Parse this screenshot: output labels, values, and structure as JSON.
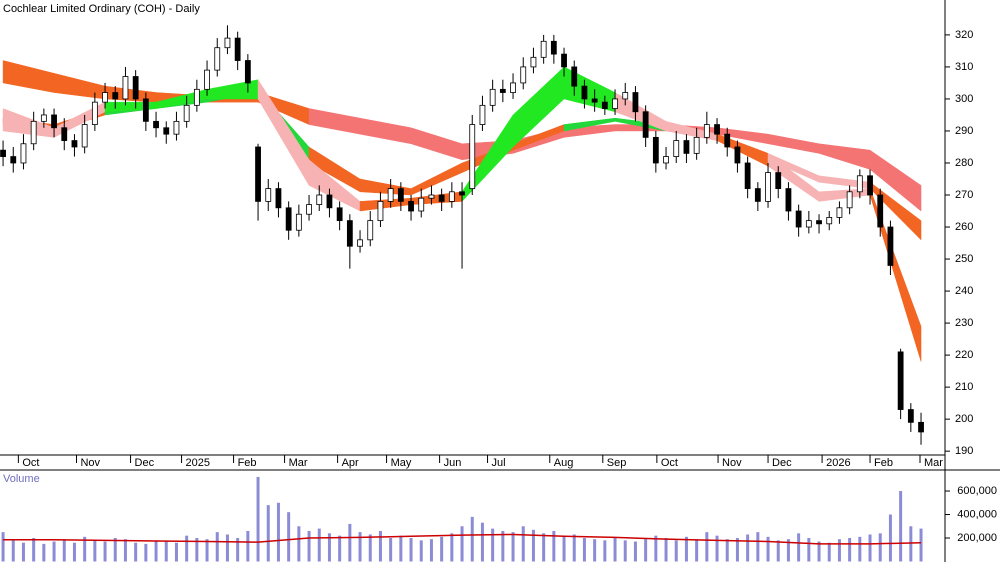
{
  "chart_data": [
    {
      "type": "candlestick",
      "title": "Cochlear Limited Ordinary (COH) - Daily",
      "open": [
        284,
        282,
        280,
        286,
        293,
        295,
        291,
        287,
        285,
        292,
        299,
        302,
        300,
        307,
        300,
        293,
        291,
        289,
        293,
        298,
        303,
        309,
        316,
        319,
        312,
        285,
        268,
        272,
        266,
        259,
        264,
        267,
        270,
        266,
        262,
        254,
        256,
        262,
        268,
        272,
        268,
        265,
        269,
        270,
        268,
        271,
        272,
        292,
        298,
        303,
        302,
        305,
        310,
        313,
        318,
        314,
        310,
        304,
        300,
        299,
        297,
        300,
        302,
        296,
        288,
        280,
        282,
        287,
        283,
        288,
        292,
        289,
        285,
        280,
        272,
        268,
        277,
        272,
        265,
        260,
        262,
        261,
        263,
        266,
        271,
        276,
        270,
        260,
        221,
        203,
        199
      ],
      "high": [
        287,
        285,
        289,
        296,
        297,
        297,
        294,
        289,
        295,
        302,
        305,
        304,
        310,
        309,
        302,
        296,
        293,
        296,
        301,
        306,
        312,
        319,
        323,
        321,
        314,
        286,
        275,
        274,
        268,
        267,
        270,
        273,
        272,
        268,
        264,
        259,
        265,
        271,
        275,
        274,
        270,
        272,
        273,
        272,
        274,
        274,
        295,
        301,
        306,
        306,
        308,
        313,
        316,
        320,
        320,
        316,
        312,
        306,
        303,
        301,
        303,
        305,
        304,
        298,
        290,
        285,
        290,
        289,
        291,
        296,
        294,
        291,
        287,
        282,
        274,
        280,
        279,
        274,
        267,
        265,
        264,
        265,
        268,
        273,
        278,
        278,
        272,
        262,
        222,
        205,
        202
      ],
      "low": [
        279,
        277,
        278,
        284,
        291,
        288,
        284,
        282,
        283,
        290,
        297,
        297,
        298,
        297,
        290,
        288,
        286,
        287,
        291,
        296,
        301,
        307,
        314,
        309,
        302,
        262,
        265,
        263,
        256,
        257,
        262,
        265,
        263,
        259,
        247,
        252,
        254,
        260,
        266,
        265,
        262,
        263,
        267,
        265,
        266,
        247,
        270,
        290,
        296,
        299,
        300,
        303,
        308,
        311,
        311,
        307,
        301,
        297,
        296,
        295,
        295,
        298,
        293,
        285,
        277,
        278,
        280,
        280,
        281,
        286,
        286,
        282,
        277,
        269,
        265,
        266,
        269,
        262,
        257,
        258,
        258,
        259,
        261,
        264,
        269,
        267,
        257,
        245,
        200,
        196,
        192
      ],
      "close": [
        282,
        280,
        286,
        293,
        295,
        291,
        287,
        285,
        292,
        299,
        302,
        300,
        307,
        300,
        293,
        291,
        289,
        293,
        298,
        303,
        309,
        316,
        319,
        312,
        305,
        268,
        272,
        266,
        259,
        264,
        267,
        270,
        266,
        262,
        254,
        256,
        262,
        268,
        272,
        268,
        265,
        269,
        270,
        268,
        271,
        270,
        292,
        298,
        303,
        302,
        305,
        310,
        313,
        318,
        314,
        310,
        304,
        300,
        299,
        297,
        300,
        302,
        296,
        288,
        280,
        282,
        287,
        283,
        288,
        292,
        289,
        285,
        280,
        272,
        268,
        277,
        272,
        265,
        260,
        262,
        261,
        263,
        266,
        271,
        276,
        270,
        260,
        248,
        203,
        199,
        196
      ],
      "up_color": "#ffffff",
      "down_color": "#000000",
      "ribbons": [
        {
          "x": [
            0,
            5,
            10,
            15,
            20,
            25,
            30,
            35,
            40,
            45,
            50,
            55,
            60,
            65,
            70,
            75,
            80,
            85,
            90
          ],
          "upper": [
            312,
            308,
            304,
            302,
            301,
            302,
            297,
            294,
            291,
            286,
            287,
            291,
            292,
            292,
            291,
            289,
            286,
            284,
            273
          ],
          "lower": [
            305,
            302,
            300,
            299,
            299,
            299,
            292,
            289,
            286,
            281,
            283,
            288,
            290,
            290,
            289,
            286,
            283,
            278,
            265
          ],
          "colors": [
            "#f26522",
            "#f26522",
            "#f26522",
            "#f26522",
            "#f26522",
            "#f26522",
            "#f47474",
            "#f47474",
            "#f47474",
            "#f47474",
            "#f47474",
            "#f47474",
            "#f47474",
            "#f47474",
            "#f47474",
            "#f47474",
            "#f47474",
            "#f47474",
            "#f47474"
          ]
        },
        {
          "x": [
            0,
            5,
            10,
            15,
            20,
            25,
            30,
            35,
            40,
            45,
            50,
            55,
            60,
            65,
            70,
            75,
            80,
            85,
            90
          ],
          "upper": [
            294,
            292,
            297,
            299,
            301,
            303,
            285,
            275,
            272,
            280,
            286,
            292,
            294,
            292,
            289,
            283,
            276,
            274,
            262
          ],
          "lower": [
            292,
            290,
            295,
            297,
            299,
            302,
            280,
            271,
            270,
            277,
            284,
            290,
            293,
            290,
            288,
            281,
            274,
            272,
            256
          ],
          "colors": [
            "#f26522",
            "#f26522",
            "#22d83a",
            "#22d83a",
            "#22d83a",
            "#22d83a",
            "#f26522",
            "#f26522",
            "#f26522",
            "#f26522",
            "#f26522",
            "#22d83a",
            "#22d83a",
            "#f26522",
            "#f26522",
            "#f7b3b3",
            "#f7b3b3",
            "#f26522",
            "#f7b3b3"
          ]
        },
        {
          "x": [
            0,
            5,
            10,
            15,
            20,
            25,
            30,
            35,
            40,
            45,
            50,
            55,
            60,
            65,
            70,
            75,
            80,
            85,
            90
          ],
          "upper": [
            297,
            291,
            299,
            299,
            303,
            306,
            281,
            268,
            269,
            271,
            295,
            310,
            302,
            293,
            289,
            283,
            271,
            272,
            229
          ],
          "lower": [
            290,
            288,
            296,
            297,
            300,
            300,
            273,
            265,
            267,
            268,
            285,
            300,
            296,
            290,
            287,
            279,
            268,
            270,
            218
          ],
          "colors": [
            "#f7b3b3",
            "#f7b3b3",
            "#22e822",
            "#22e822",
            "#22e822",
            "#f7b3b3",
            "#f7b3b3",
            "#f26522",
            "#f26522",
            "#22e822",
            "#22e822",
            "#22e822",
            "#f7b3b3",
            "#f7b3b3",
            "#f26522",
            "#f7b3b3",
            "#f7b3b3",
            "#f26522",
            "#f7b3b3"
          ]
        }
      ],
      "xlim": [
        -0.3,
        92.35
      ],
      "ylim": [
        188.8,
        330.9
      ],
      "yticks": [
        190,
        200,
        210,
        220,
        230,
        240,
        250,
        260,
        270,
        280,
        290,
        300,
        310,
        320
      ],
      "xticks": [
        {
          "value": 1.5,
          "label": "Oct"
        },
        {
          "value": 7.2,
          "label": "Nov"
        },
        {
          "value": 12.5,
          "label": "Dec"
        },
        {
          "value": 17.5,
          "label": "2025"
        },
        {
          "value": 22.6,
          "label": "Feb"
        },
        {
          "value": 27.6,
          "label": "Mar"
        },
        {
          "value": 32.8,
          "label": "Apr"
        },
        {
          "value": 37.6,
          "label": "May"
        },
        {
          "value": 42.8,
          "label": "Jun"
        },
        {
          "value": 47.5,
          "label": "Jul"
        },
        {
          "value": 53.6,
          "label": "Aug"
        },
        {
          "value": 58.8,
          "label": "Sep"
        },
        {
          "value": 64.1,
          "label": "Oct"
        },
        {
          "value": 70.1,
          "label": "Nov"
        },
        {
          "value": 75.0,
          "label": "Dec"
        },
        {
          "value": 80.3,
          "label": "2026"
        },
        {
          "value": 85.0,
          "label": "Feb"
        },
        {
          "value": 89.9,
          "label": "Mar"
        }
      ],
      "grid": false
    },
    {
      "type": "bar",
      "title": "Volume",
      "color": "#8c8cd6",
      "values": [
        250000,
        180000,
        160000,
        200000,
        150000,
        170000,
        190000,
        160000,
        210000,
        180000,
        170000,
        200000,
        190000,
        160000,
        150000,
        180000,
        170000,
        160000,
        220000,
        200000,
        190000,
        250000,
        230000,
        200000,
        260000,
        720000,
        480000,
        500000,
        420000,
        300000,
        260000,
        280000,
        240000,
        220000,
        320000,
        250000,
        230000,
        260000,
        200000,
        220000,
        200000,
        180000,
        190000,
        210000,
        240000,
        300000,
        380000,
        330000,
        280000,
        260000,
        250000,
        300000,
        270000,
        240000,
        260000,
        220000,
        230000,
        200000,
        190000,
        180000,
        200000,
        180000,
        170000,
        190000,
        220000,
        200000,
        180000,
        210000,
        190000,
        250000,
        220000,
        190000,
        200000,
        230000,
        250000,
        210000,
        180000,
        190000,
        240000,
        200000,
        170000,
        160000,
        190000,
        200000,
        210000,
        230000,
        240000,
        400000,
        600000,
        300000,
        280000
      ],
      "moving_average": {
        "color": "#cc0000",
        "x": [
          0,
          5,
          10,
          15,
          20,
          25,
          30,
          35,
          40,
          45,
          50,
          55,
          60,
          65,
          70,
          75,
          80,
          85,
          90
        ],
        "values": [
          185000,
          185000,
          180000,
          175000,
          170000,
          165000,
          200000,
          205000,
          215000,
          225000,
          230000,
          215000,
          205000,
          190000,
          180000,
          170000,
          150000,
          150000,
          160000
        ]
      },
      "xlim": [
        -0.3,
        92.35
      ],
      "ylim": [
        0,
        779000
      ],
      "yticks": [
        {
          "value": 200000,
          "label": "200,000"
        },
        {
          "value": 400000,
          "label": "400,000"
        },
        {
          "value": 600000,
          "label": "600,000"
        }
      ],
      "grid": false
    }
  ]
}
